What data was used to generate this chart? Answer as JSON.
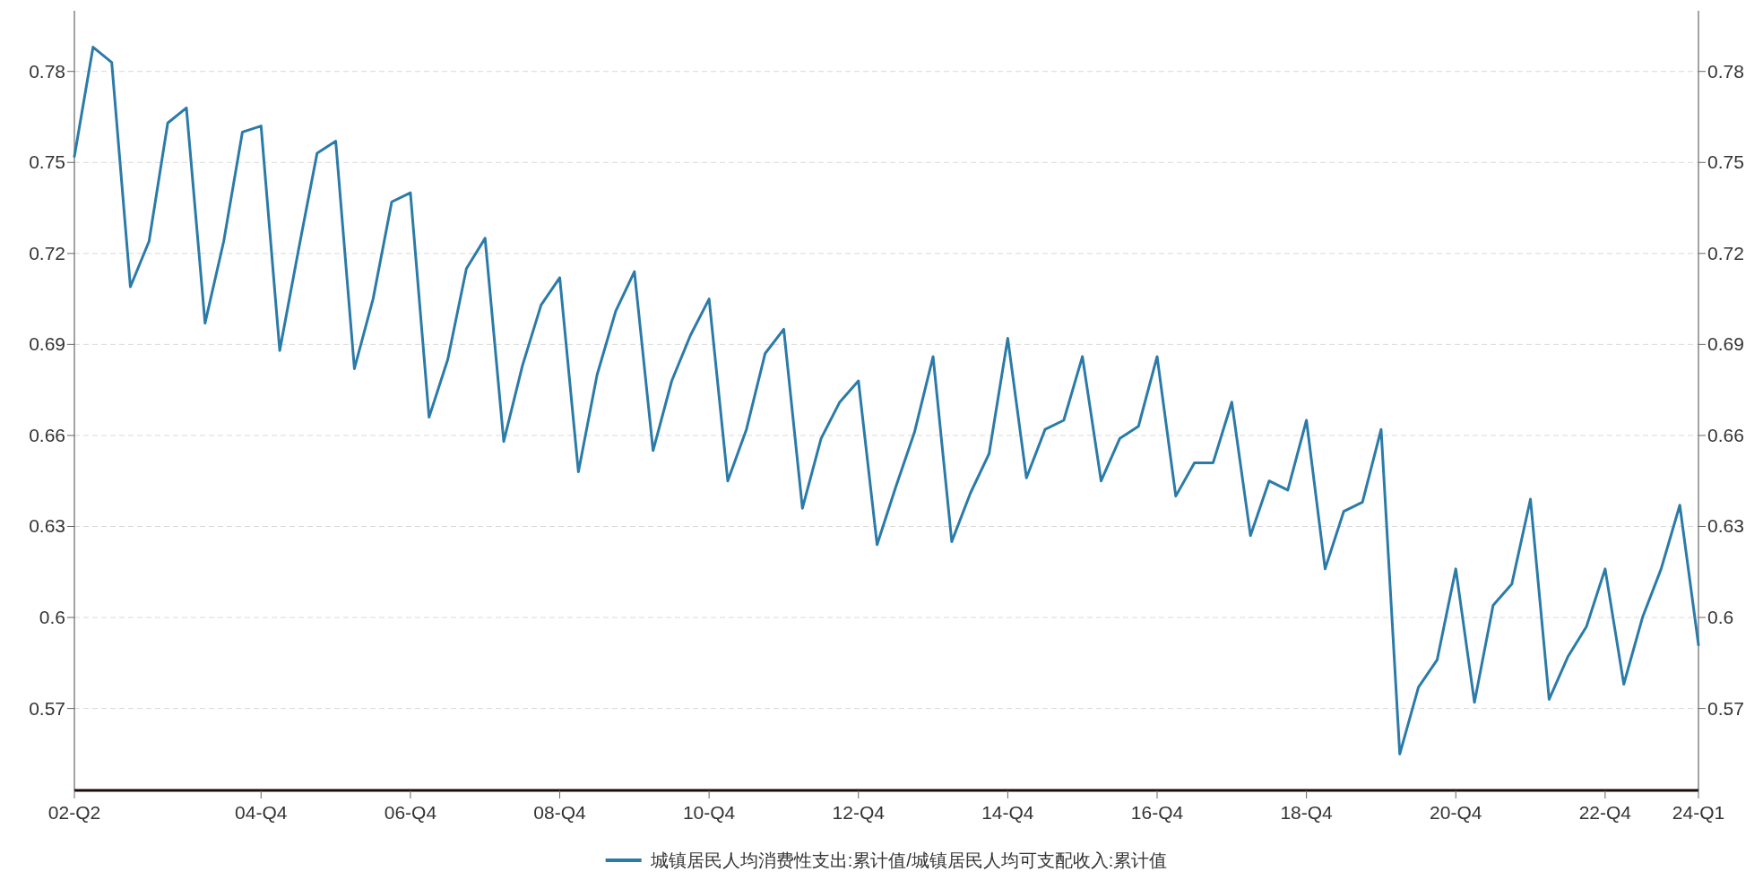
{
  "chart_data": {
    "type": "line",
    "categories": [
      "02-Q2",
      null,
      null,
      null,
      null,
      null,
      null,
      null,
      null,
      null,
      "04-Q4",
      null,
      null,
      null,
      null,
      null,
      null,
      null,
      "06-Q4",
      null,
      null,
      null,
      null,
      null,
      null,
      null,
      "08-Q4",
      null,
      null,
      null,
      null,
      null,
      null,
      null,
      "10-Q4",
      null,
      null,
      null,
      null,
      null,
      null,
      null,
      "12-Q4",
      null,
      null,
      null,
      null,
      null,
      null,
      null,
      "14-Q4",
      null,
      null,
      null,
      null,
      null,
      null,
      null,
      "16-Q4",
      null,
      null,
      null,
      null,
      null,
      null,
      null,
      "18-Q4",
      null,
      null,
      null,
      null,
      null,
      null,
      null,
      "20-Q4",
      null,
      null,
      null,
      null,
      null,
      null,
      null,
      "22-Q4",
      null,
      null,
      null,
      null,
      "24-Q1"
    ],
    "series": [
      {
        "name": "城镇居民人均消费性支出:累计值/城镇居民人均可支配收入:累计值",
        "color": "#2b7ba8",
        "values": [
          0.752,
          0.788,
          0.783,
          0.709,
          0.724,
          0.763,
          0.768,
          0.697,
          0.724,
          0.76,
          0.762,
          0.688,
          0.721,
          0.753,
          0.757,
          0.682,
          0.705,
          0.737,
          0.74,
          0.666,
          0.685,
          0.715,
          0.725,
          0.658,
          0.683,
          0.703,
          0.712,
          0.648,
          0.68,
          0.701,
          0.714,
          0.655,
          0.678,
          0.693,
          0.705,
          0.645,
          0.662,
          0.687,
          0.695,
          0.636,
          0.659,
          0.671,
          0.678,
          0.624,
          0.643,
          0.661,
          0.686,
          0.625,
          0.641,
          0.654,
          0.692,
          0.646,
          0.662,
          0.665,
          0.686,
          0.645,
          0.659,
          0.663,
          0.686,
          0.64,
          0.651,
          0.651,
          0.671,
          0.627,
          0.645,
          0.642,
          0.665,
          0.616,
          0.635,
          0.638,
          0.662,
          0.555,
          0.577,
          0.586,
          0.616,
          0.572,
          0.604,
          0.611,
          0.639,
          0.573,
          0.587,
          0.597,
          0.616,
          0.578,
          0.6,
          0.616,
          0.637,
          0.591
        ]
      }
    ],
    "ylim": [
      0.543,
      0.8
    ],
    "yticks": [
      0.57,
      0.6,
      0.63,
      0.66,
      0.69,
      0.72,
      0.75,
      0.78
    ],
    "y2lim": [
      0.543,
      0.8
    ],
    "y2ticks": [
      0.57,
      0.6,
      0.63,
      0.66,
      0.69,
      0.72,
      0.75,
      0.78
    ],
    "grid": "y",
    "legend": "bottom",
    "marker": "none",
    "line_style": "solid"
  }
}
